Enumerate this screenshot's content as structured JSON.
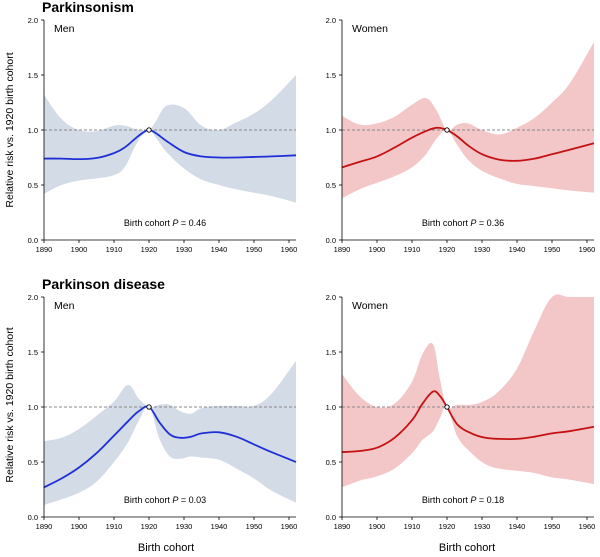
{
  "figure": {
    "y_axis_label": "Relative risk vs. 1920 birth cohort",
    "x_axis_label": "Birth cohort",
    "colors": {
      "men": "#1f2fd6",
      "women": "#c41212",
      "men_band": "#d3dbe7",
      "women_band": "#f3c6c8",
      "axis": "#000000",
      "refline": "#888888"
    }
  },
  "chart_data": [
    {
      "type": "line",
      "section_title": "Parkinsonism",
      "panel_label": "Men",
      "group": "men",
      "annotation_prefix": "Birth cohort ",
      "annotation_p": "P",
      "annotation_value": " = 0.46",
      "xlabel": "",
      "ylabel": "Relative risk vs. 1920 birth cohort",
      "xlim": [
        1890,
        1962
      ],
      "ylim": [
        0,
        2
      ],
      "x_ticks": [
        "1890",
        "1900",
        "1910",
        "1920",
        "1930",
        "1940",
        "1950",
        "1960"
      ],
      "y_ticks": [
        "0.0",
        "0.5",
        "1.0",
        "1.5",
        "2.0"
      ],
      "reference_y": 1.0,
      "reference_point": [
        1920,
        1.0
      ],
      "x": [
        1890,
        1895,
        1900,
        1905,
        1910,
        1913,
        1916,
        1918,
        1920,
        1922,
        1925,
        1930,
        1935,
        1940,
        1945,
        1950,
        1955,
        1962
      ],
      "y": [
        0.74,
        0.74,
        0.735,
        0.745,
        0.79,
        0.84,
        0.92,
        0.97,
        1.0,
        0.97,
        0.9,
        0.8,
        0.76,
        0.75,
        0.75,
        0.755,
        0.76,
        0.77
      ],
      "lower": [
        0.42,
        0.5,
        0.54,
        0.56,
        0.59,
        0.66,
        0.85,
        0.95,
        1.0,
        0.93,
        0.8,
        0.65,
        0.55,
        0.5,
        0.46,
        0.43,
        0.4,
        0.34
      ],
      "upper": [
        1.32,
        1.1,
        1.0,
        0.99,
        1.04,
        1.04,
        1.01,
        1.0,
        1.0,
        1.08,
        1.22,
        1.2,
        1.04,
        1.0,
        1.07,
        1.15,
        1.27,
        1.5
      ]
    },
    {
      "type": "line",
      "section_title": "",
      "panel_label": "Women",
      "group": "women",
      "annotation_prefix": "Birth cohort ",
      "annotation_p": "P",
      "annotation_value": " = 0.36",
      "xlabel": "",
      "ylabel": "",
      "xlim": [
        1890,
        1962
      ],
      "ylim": [
        0,
        2
      ],
      "x_ticks": [
        "1890",
        "1900",
        "1910",
        "1920",
        "1930",
        "1940",
        "1950",
        "1960"
      ],
      "y_ticks": [
        "0.0",
        "0.5",
        "1.0",
        "1.5",
        "2.0"
      ],
      "reference_y": 1.0,
      "reference_point": [
        1920,
        1.0
      ],
      "x": [
        1890,
        1895,
        1900,
        1905,
        1910,
        1914,
        1917,
        1920,
        1923,
        1926,
        1930,
        1935,
        1940,
        1945,
        1950,
        1955,
        1962
      ],
      "y": [
        0.66,
        0.71,
        0.76,
        0.84,
        0.93,
        0.99,
        1.02,
        1.0,
        0.94,
        0.86,
        0.78,
        0.73,
        0.72,
        0.74,
        0.78,
        0.82,
        0.88
      ],
      "lower": [
        0.38,
        0.46,
        0.52,
        0.58,
        0.66,
        0.78,
        0.92,
        1.0,
        0.86,
        0.73,
        0.63,
        0.56,
        0.51,
        0.49,
        0.47,
        0.45,
        0.43
      ],
      "upper": [
        1.13,
        1.05,
        1.06,
        1.12,
        1.23,
        1.29,
        1.18,
        1.0,
        1.05,
        1.06,
        1.0,
        0.96,
        1.02,
        1.11,
        1.25,
        1.42,
        1.8
      ]
    },
    {
      "type": "line",
      "section_title": "Parkinson disease",
      "panel_label": "Men",
      "group": "men",
      "annotation_prefix": "Birth cohort ",
      "annotation_p": "P",
      "annotation_value": " = 0.03",
      "xlabel": "Birth cohort",
      "ylabel": "Relative risk vs. 1920 birth cohort",
      "xlim": [
        1890,
        1962
      ],
      "ylim": [
        0,
        2
      ],
      "x_ticks": [
        "1890",
        "1900",
        "1910",
        "1920",
        "1930",
        "1940",
        "1950",
        "1960"
      ],
      "y_ticks": [
        "0.0",
        "0.5",
        "1.0",
        "1.5",
        "2.0"
      ],
      "reference_y": 1.0,
      "reference_point": [
        1920,
        1.0
      ],
      "x": [
        1890,
        1895,
        1900,
        1905,
        1910,
        1914,
        1917,
        1920,
        1923,
        1926,
        1929,
        1932,
        1935,
        1940,
        1945,
        1950,
        1955,
        1962
      ],
      "y": [
        0.27,
        0.35,
        0.45,
        0.58,
        0.74,
        0.87,
        0.96,
        1.0,
        0.86,
        0.75,
        0.72,
        0.73,
        0.76,
        0.77,
        0.73,
        0.66,
        0.59,
        0.5
      ],
      "lower": [
        0.11,
        0.16,
        0.22,
        0.32,
        0.5,
        0.68,
        0.87,
        1.0,
        0.71,
        0.55,
        0.53,
        0.55,
        0.54,
        0.52,
        0.44,
        0.35,
        0.24,
        0.13
      ],
      "upper": [
        0.69,
        0.72,
        0.8,
        0.92,
        1.05,
        1.2,
        1.08,
        1.0,
        1.02,
        1.02,
        0.96,
        0.94,
        0.99,
        1.01,
        1.01,
        1.01,
        1.12,
        1.42
      ]
    },
    {
      "type": "line",
      "section_title": "",
      "panel_label": "Women",
      "group": "women",
      "annotation_prefix": "Birth cohort ",
      "annotation_p": "P",
      "annotation_value": " = 0.18",
      "xlabel": "Birth cohort",
      "ylabel": "",
      "xlim": [
        1890,
        1962
      ],
      "ylim": [
        0,
        2
      ],
      "x_ticks": [
        "1890",
        "1900",
        "1910",
        "1920",
        "1930",
        "1940",
        "1950",
        "1960"
      ],
      "y_ticks": [
        "0.0",
        "0.5",
        "1.0",
        "1.5",
        "2.0"
      ],
      "reference_y": 1.0,
      "reference_point": [
        1920,
        1.0
      ],
      "x": [
        1890,
        1895,
        1900,
        1905,
        1910,
        1913,
        1916,
        1918,
        1920,
        1923,
        1927,
        1931,
        1935,
        1940,
        1945,
        1950,
        1955,
        1962
      ],
      "y": [
        0.59,
        0.6,
        0.63,
        0.72,
        0.88,
        1.03,
        1.14,
        1.1,
        1.0,
        0.84,
        0.76,
        0.72,
        0.71,
        0.71,
        0.73,
        0.76,
        0.78,
        0.82
      ],
      "lower": [
        0.27,
        0.33,
        0.37,
        0.44,
        0.58,
        0.7,
        0.78,
        0.9,
        1.0,
        0.73,
        0.58,
        0.48,
        0.44,
        0.42,
        0.4,
        0.36,
        0.34,
        0.3
      ],
      "upper": [
        1.3,
        1.1,
        1.0,
        1.03,
        1.23,
        1.48,
        1.57,
        1.25,
        1.0,
        1.02,
        1.02,
        1.06,
        1.15,
        1.35,
        1.7,
        2.0,
        2.0,
        2.0
      ]
    }
  ]
}
